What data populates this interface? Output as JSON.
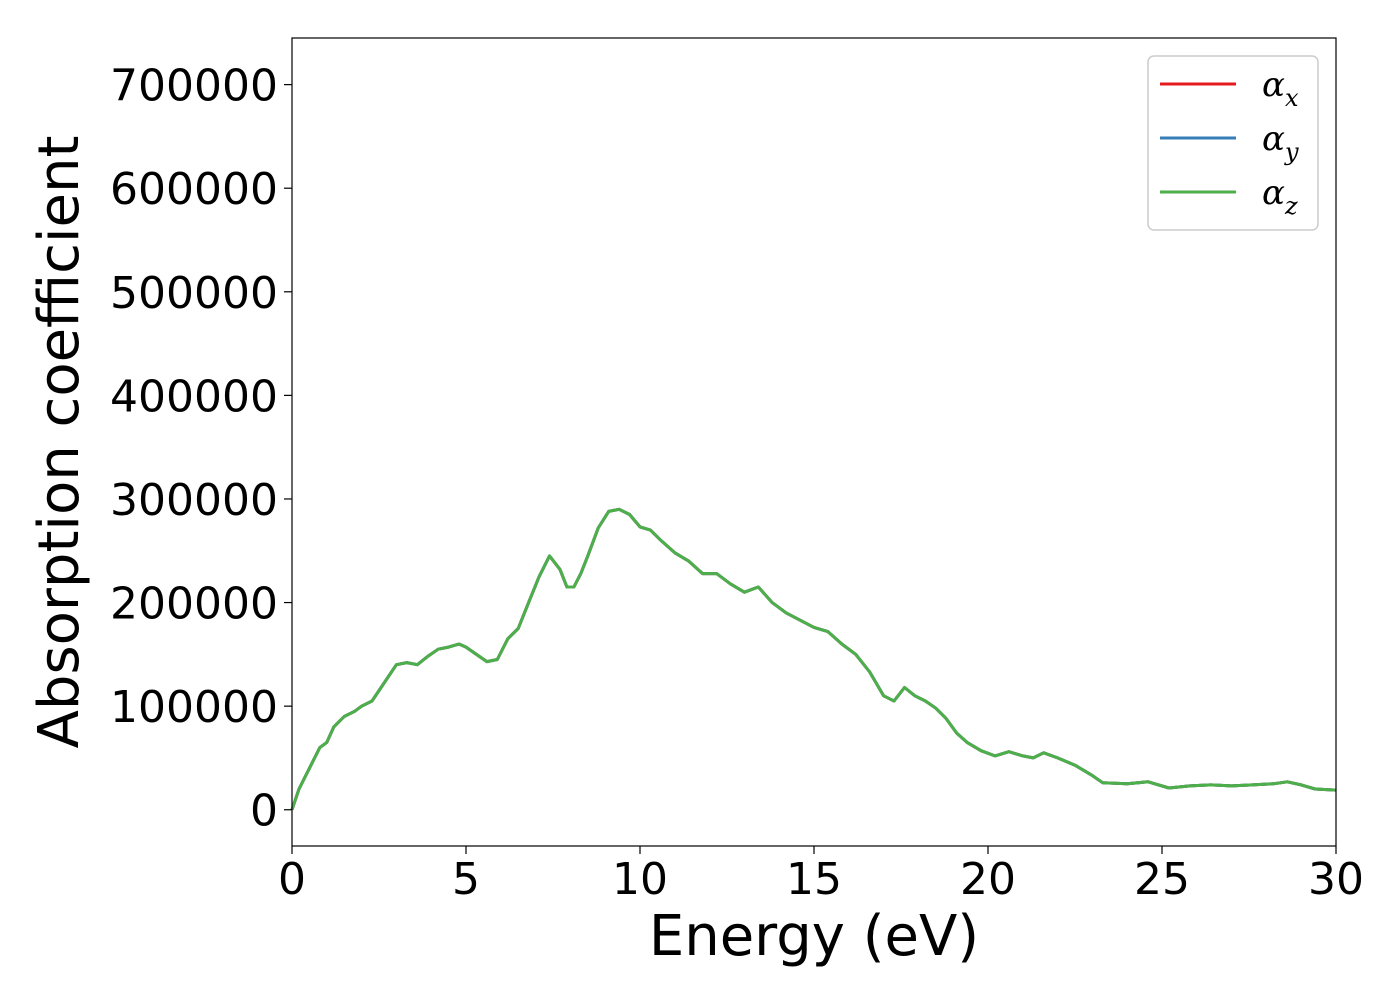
{
  "chart_data": {
    "type": "line",
    "xlabel": "Energy (eV)",
    "ylabel": "Absorption coefficient",
    "xlim": [
      0,
      30
    ],
    "ylim": [
      -35000,
      745000
    ],
    "xticks": [
      0,
      5,
      10,
      15,
      20,
      25,
      30
    ],
    "xtick_labels": [
      "0",
      "5",
      "10",
      "15",
      "20",
      "25",
      "30"
    ],
    "yticks": [
      0,
      100000,
      200000,
      300000,
      400000,
      500000,
      600000,
      700000
    ],
    "ytick_labels": [
      "0",
      "100000",
      "200000",
      "300000",
      "400000",
      "500000",
      "600000",
      "700000"
    ],
    "grid": false,
    "legend_position": "top-right",
    "x": [
      0,
      0.2,
      0.5,
      0.8,
      1.0,
      1.2,
      1.5,
      1.8,
      2.0,
      2.3,
      2.6,
      3.0,
      3.3,
      3.6,
      3.9,
      4.2,
      4.5,
      4.8,
      5.0,
      5.3,
      5.6,
      5.9,
      6.2,
      6.5,
      6.8,
      7.1,
      7.4,
      7.7,
      7.9,
      8.1,
      8.3,
      8.5,
      8.8,
      9.1,
      9.4,
      9.7,
      10.0,
      10.3,
      10.6,
      11.0,
      11.4,
      11.8,
      12.2,
      12.6,
      13.0,
      13.4,
      13.8,
      14.2,
      14.6,
      15.0,
      15.4,
      15.8,
      16.2,
      16.6,
      17.0,
      17.3,
      17.6,
      17.9,
      18.2,
      18.5,
      18.8,
      19.1,
      19.4,
      19.8,
      20.2,
      20.6,
      21.0,
      21.3,
      21.6,
      22.0,
      22.5,
      23.0,
      23.3,
      24.0,
      24.6,
      25.2,
      25.8,
      26.4,
      27.0,
      27.6,
      28.2,
      28.6,
      29.0,
      29.4,
      30.0
    ],
    "series": [
      {
        "name": "αx",
        "color": "#e41a1c",
        "values": [
          0,
          20000,
          40000,
          60000,
          65000,
          80000,
          90000,
          95000,
          100000,
          105000,
          120000,
          140000,
          142000,
          140000,
          148000,
          155000,
          157000,
          160000,
          157000,
          150000,
          143000,
          145000,
          165000,
          175000,
          200000,
          225000,
          245000,
          232000,
          215000,
          215000,
          228000,
          245000,
          272000,
          288000,
          290000,
          285000,
          273000,
          270000,
          260000,
          248000,
          240000,
          228000,
          228000,
          218000,
          210000,
          215000,
          200000,
          190000,
          183000,
          176000,
          172000,
          160000,
          150000,
          133000,
          110000,
          105000,
          118000,
          110000,
          105000,
          98000,
          88000,
          74000,
          65000,
          57000,
          52000,
          56000,
          52000,
          50000,
          55000,
          50000,
          43000,
          33000,
          26000,
          25000,
          27000,
          21000,
          23000,
          24000,
          23000,
          24000,
          25000,
          27000,
          24000,
          20000,
          19000
        ]
      },
      {
        "name": "αy",
        "color": "#377eb8",
        "values": [
          0,
          20000,
          40000,
          60000,
          65000,
          80000,
          90000,
          95000,
          100000,
          105000,
          120000,
          140000,
          142000,
          140000,
          148000,
          155000,
          157000,
          160000,
          157000,
          150000,
          143000,
          145000,
          165000,
          175000,
          200000,
          225000,
          245000,
          232000,
          215000,
          215000,
          228000,
          245000,
          272000,
          288000,
          290000,
          285000,
          273000,
          270000,
          260000,
          248000,
          240000,
          228000,
          228000,
          218000,
          210000,
          215000,
          200000,
          190000,
          183000,
          176000,
          172000,
          160000,
          150000,
          133000,
          110000,
          105000,
          118000,
          110000,
          105000,
          98000,
          88000,
          74000,
          65000,
          57000,
          52000,
          56000,
          52000,
          50000,
          55000,
          50000,
          43000,
          33000,
          26000,
          25000,
          27000,
          21000,
          23000,
          24000,
          23000,
          24000,
          25000,
          27000,
          24000,
          20000,
          19000
        ]
      },
      {
        "name": "αz",
        "color": "#4daf4a",
        "values": [
          0,
          20000,
          40000,
          60000,
          65000,
          80000,
          90000,
          95000,
          100000,
          105000,
          120000,
          140000,
          142000,
          140000,
          148000,
          155000,
          157000,
          160000,
          157000,
          150000,
          143000,
          145000,
          165000,
          175000,
          200000,
          225000,
          245000,
          232000,
          215000,
          215000,
          228000,
          245000,
          272000,
          288000,
          290000,
          285000,
          273000,
          270000,
          260000,
          248000,
          240000,
          228000,
          228000,
          218000,
          210000,
          215000,
          200000,
          190000,
          183000,
          176000,
          172000,
          160000,
          150000,
          133000,
          110000,
          105000,
          118000,
          110000,
          105000,
          98000,
          88000,
          74000,
          65000,
          57000,
          52000,
          56000,
          52000,
          50000,
          55000,
          50000,
          43000,
          33000,
          26000,
          25000,
          27000,
          21000,
          23000,
          24000,
          23000,
          24000,
          25000,
          27000,
          24000,
          20000,
          19000
        ]
      }
    ],
    "legend": [
      {
        "symbol": "α",
        "sub": "x",
        "color": "#e41a1c"
      },
      {
        "symbol": "α",
        "sub": "y",
        "color": "#377eb8"
      },
      {
        "symbol": "α",
        "sub": "z",
        "color": "#4daf4a"
      }
    ]
  }
}
